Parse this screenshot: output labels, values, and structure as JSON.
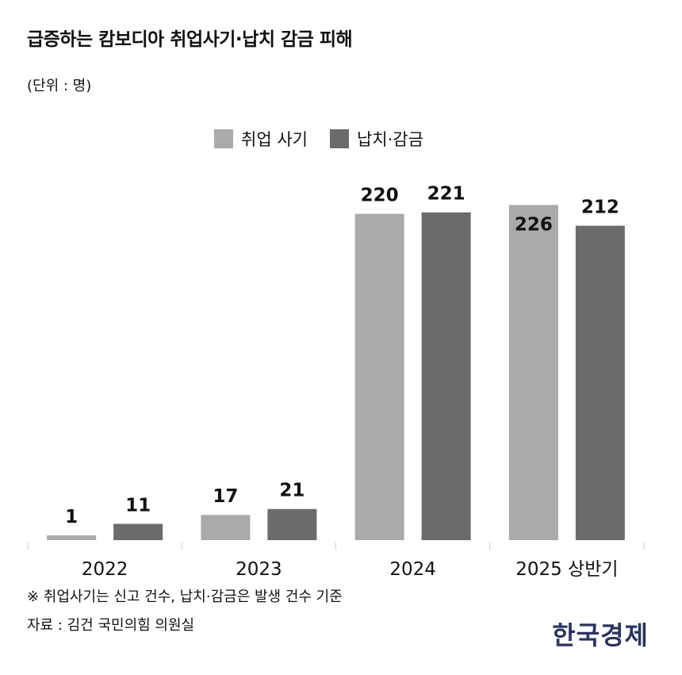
{
  "title": "급증하는 캄보디아 취업사기·납치 감금 피해",
  "unit": "(단위 : 명)",
  "note": "※ 취업사기는 신고 건수, 납치·감금은 발생 건수 기준",
  "source": "자료 : 김건 국민의힘 의원실",
  "logo": "한국경제",
  "chart_data": {
    "type": "bar",
    "title": "급증하는 캄보디아 취업사기·납치 감금 피해",
    "ylabel": "(단위 : 명)",
    "categories": [
      "2022",
      "2023",
      "2024",
      "2025 상반기"
    ],
    "series": [
      {
        "name": "취업 사기",
        "color": "#aaaaaa",
        "values": [
          1,
          17,
          220,
          226
        ]
      },
      {
        "name": "납치·감금",
        "color": "#6b6b6b",
        "values": [
          11,
          21,
          221,
          212
        ]
      }
    ],
    "legend": "top",
    "grid": false,
    "ylim": [
      0,
      230
    ]
  }
}
